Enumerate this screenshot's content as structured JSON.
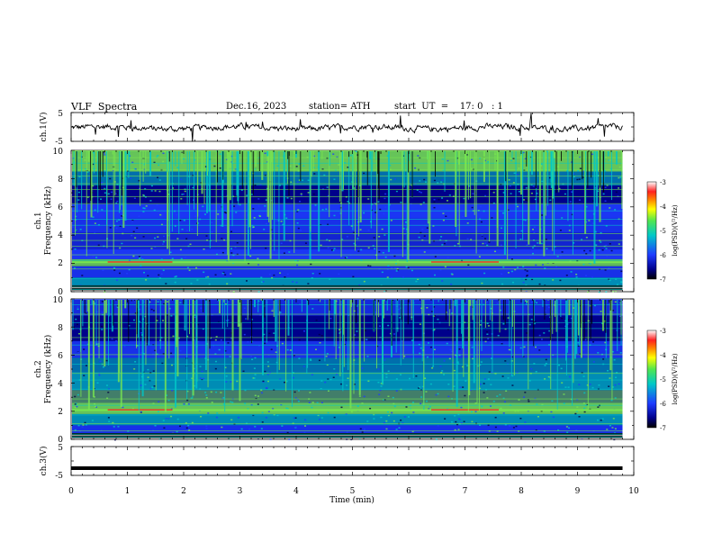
{
  "header": {
    "title": "VLF  Spectra",
    "date": "Dec.16, 2023",
    "station": "station= ATH",
    "start": "start  UT  =    17: 0   : 1"
  },
  "chart_data": [
    {
      "type": "line",
      "panel": "ch1-waveform",
      "ylabel": "ch.1(V)",
      "ylim": [
        -5,
        5
      ],
      "yticks": [
        "5",
        "-5"
      ],
      "xlim": [
        0,
        10
      ],
      "series": [
        {
          "values": "noisy waveform around 0 V, roughly -1.5 to +1 V with occasional spikes"
        }
      ]
    },
    {
      "type": "heatmap",
      "panel": "ch1-spectrogram",
      "ylabel": "ch.1\nFrequency  (kHz)",
      "ylim": [
        0,
        10
      ],
      "yticks": [
        "0",
        "2",
        "4",
        "6",
        "8",
        "10"
      ],
      "xlim": [
        0,
        10
      ],
      "colorbar": {
        "label": "log(PSD)(V²/Hz)",
        "range": [
          -7,
          -3
        ],
        "ticks": [
          "-3",
          "-4",
          "-5",
          "-6",
          "-7"
        ]
      }
    },
    {
      "type": "heatmap",
      "panel": "ch2-spectrogram",
      "ylabel": "ch.2\nFrequency  (kHz)",
      "ylim": [
        0,
        10
      ],
      "yticks": [
        "0",
        "2",
        "4",
        "6",
        "8",
        "10"
      ],
      "xlim": [
        0,
        10
      ],
      "colorbar": {
        "label": "log(PSD)(V²/Hz)",
        "range": [
          -7,
          -3
        ],
        "ticks": [
          "-3",
          "-4",
          "-5",
          "-6",
          "-7"
        ]
      }
    },
    {
      "type": "line",
      "panel": "ch3-waveform",
      "ylabel": "ch.3(V)",
      "ylim": [
        -5,
        5
      ],
      "yticks": [
        "5",
        "-5"
      ],
      "xlim": [
        0,
        10
      ],
      "series": [
        {
          "values": "flat thick line at about -2.5 V from t=0 to t=9.8 min"
        }
      ]
    }
  ],
  "xaxis": {
    "label": "Time  (min)",
    "ticks": [
      "0",
      "1",
      "2",
      "3",
      "4",
      "5",
      "6",
      "7",
      "8",
      "9",
      "10"
    ],
    "range": [
      0,
      10
    ],
    "data_end": 9.8
  },
  "colors": {
    "low": "#00008b",
    "mid_low": "#1e3cff",
    "mid": "#00c8c8",
    "mid_high": "#78e650",
    "high": "#ffff00",
    "peak": "#ff2020"
  }
}
